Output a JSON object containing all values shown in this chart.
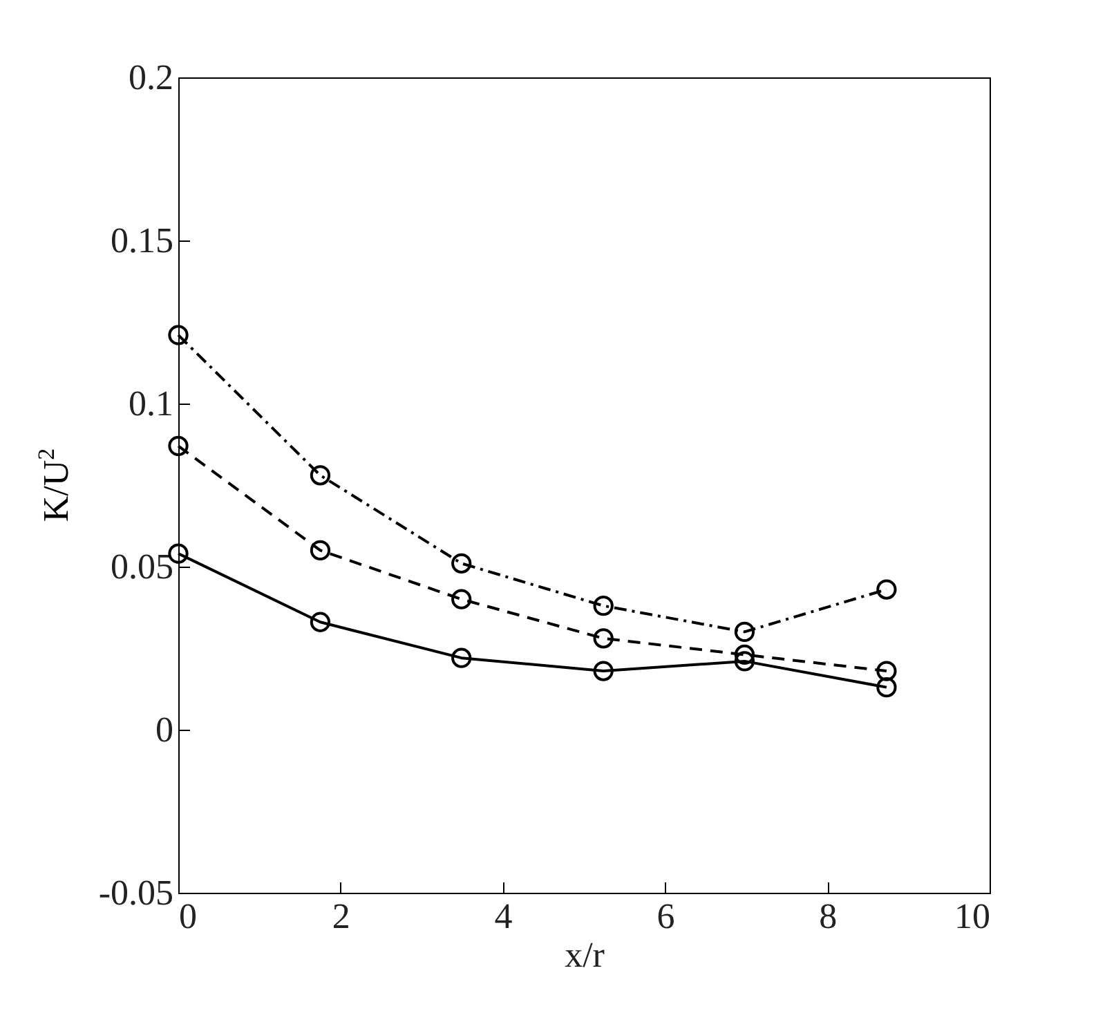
{
  "chart_data": {
    "type": "line",
    "xlabel": "x/r",
    "ylabel": "K/U$^{2}$",
    "x": [
      0,
      1.75,
      3.49,
      5.24,
      6.98,
      8.73
    ],
    "xlim": [
      0,
      10
    ],
    "xticks": [
      0,
      2,
      4,
      6,
      8,
      10
    ],
    "ylim": [
      -0.05,
      0.2
    ],
    "yticks": [
      -0.05,
      0,
      0.05,
      0.1,
      0.15,
      0.2
    ],
    "grid": false,
    "marker": "circle",
    "series": [
      {
        "color": "#000000",
        "line_style": "solid",
        "values": [
          0.054,
          0.033,
          0.022,
          0.018,
          0.021,
          0.013
        ]
      },
      {
        "color": "#000000",
        "line_style": "dashed",
        "values": [
          0.087,
          0.055,
          0.04,
          0.028,
          0.023,
          0.018
        ]
      },
      {
        "color": "#000000",
        "line_style": "dashdot",
        "values": [
          0.121,
          0.078,
          0.051,
          0.038,
          0.03,
          0.043
        ]
      }
    ]
  }
}
